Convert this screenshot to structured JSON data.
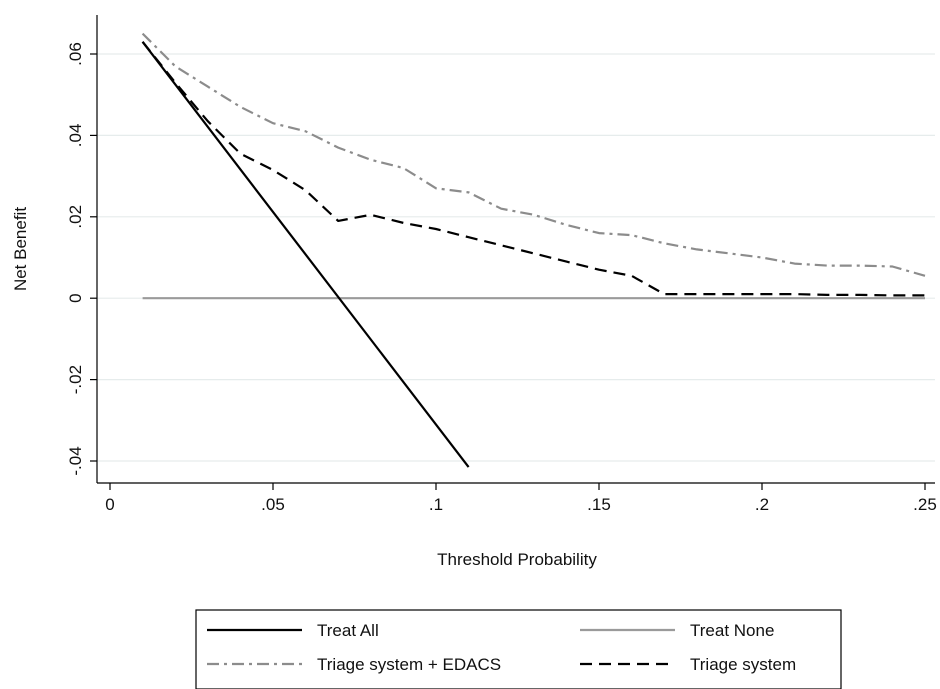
{
  "chart_data": {
    "type": "line",
    "title": "",
    "xlabel": "Threshold Probability",
    "ylabel": "Net Benefit",
    "xlim": [
      0,
      0.25
    ],
    "ylim": [
      -0.04,
      0.06
    ],
    "x_ticks": [
      0,
      0.05,
      0.1,
      0.15,
      0.2,
      0.25
    ],
    "x_tick_labels": [
      "0",
      ".05",
      ".1",
      ".15",
      ".2",
      ".25"
    ],
    "y_ticks": [
      -0.04,
      -0.02,
      0,
      0.02,
      0.04,
      0.06
    ],
    "y_tick_labels": [
      "-.04",
      "-.02",
      "0",
      ".02",
      ".04",
      ".06"
    ],
    "grid": true,
    "legend_position": "bottom",
    "series": [
      {
        "name": "Treat All",
        "color": "#000000",
        "style": "solid",
        "x": [
          0.01,
          0.11
        ],
        "y": [
          0.063,
          -0.0415
        ]
      },
      {
        "name": "Treat None",
        "color": "#9a9a9a",
        "style": "solid",
        "x": [
          0.01,
          0.25
        ],
        "y": [
          0,
          0
        ]
      },
      {
        "name": "Triage system + EDACS",
        "color": "#8c8c8c",
        "style": "dashdot",
        "x": [
          0.01,
          0.02,
          0.03,
          0.04,
          0.05,
          0.06,
          0.07,
          0.08,
          0.09,
          0.1,
          0.11,
          0.12,
          0.13,
          0.14,
          0.15,
          0.16,
          0.17,
          0.18,
          0.19,
          0.2,
          0.21,
          0.22,
          0.23,
          0.24,
          0.25
        ],
        "y": [
          0.065,
          0.057,
          0.052,
          0.047,
          0.043,
          0.041,
          0.037,
          0.034,
          0.032,
          0.027,
          0.026,
          0.022,
          0.0205,
          0.018,
          0.016,
          0.0155,
          0.0135,
          0.012,
          0.011,
          0.01,
          0.0085,
          0.008,
          0.008,
          0.0078,
          0.0055
        ]
      },
      {
        "name": "Triage system",
        "color": "#000000",
        "style": "dash",
        "x": [
          0.01,
          0.02,
          0.03,
          0.04,
          0.05,
          0.06,
          0.07,
          0.08,
          0.09,
          0.1,
          0.11,
          0.12,
          0.13,
          0.14,
          0.15,
          0.16,
          0.17,
          0.18,
          0.19,
          0.2,
          0.21,
          0.22,
          0.23,
          0.24,
          0.25
        ],
        "y": [
          0.063,
          0.053,
          0.0435,
          0.0355,
          0.0315,
          0.0265,
          0.019,
          0.0205,
          0.0185,
          0.017,
          0.015,
          0.013,
          0.011,
          0.009,
          0.007,
          0.0055,
          0.001,
          0.001,
          0.001,
          0.001,
          0.001,
          0.0008,
          0.0008,
          0.0007,
          0.0007
        ]
      }
    ]
  }
}
